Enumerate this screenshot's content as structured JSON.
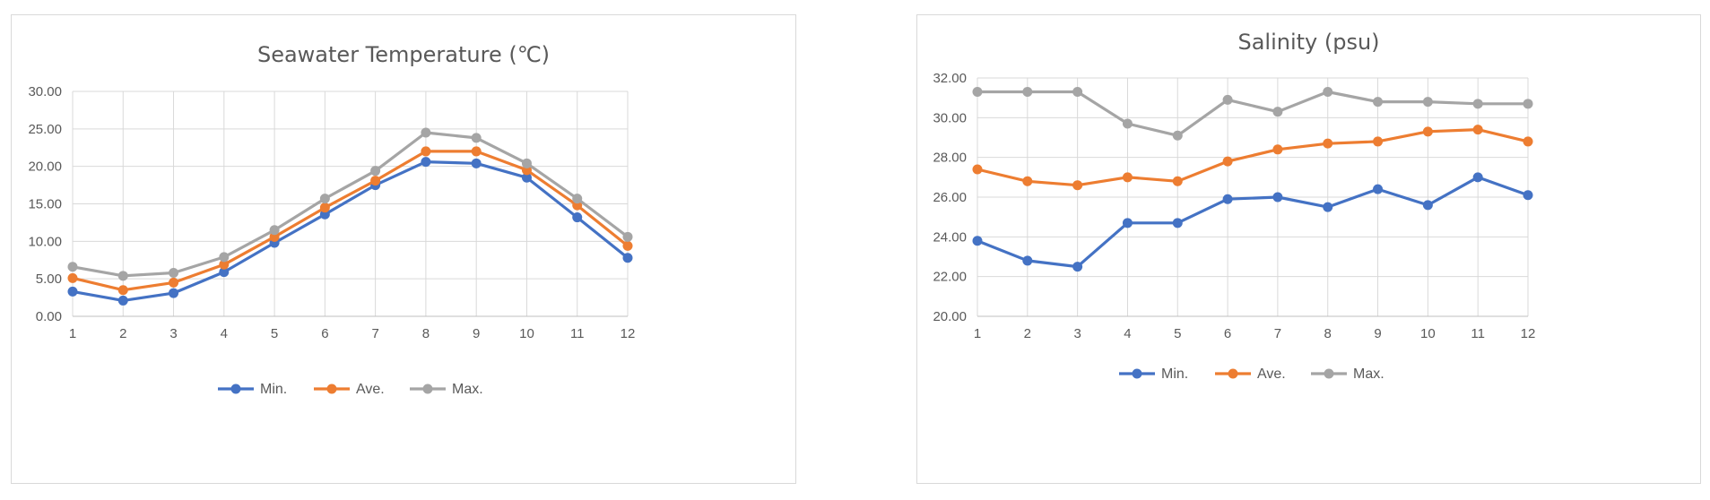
{
  "colors": {
    "min": "#4472C4",
    "ave": "#ED7D31",
    "max": "#A5A5A5",
    "grid": "#D9D9D9",
    "text": "#595959"
  },
  "chart_data": [
    {
      "type": "line",
      "title": "Seawater Temperature (℃)",
      "xlabel": "",
      "ylabel": "",
      "x": [
        "1",
        "2",
        "3",
        "4",
        "5",
        "6",
        "7",
        "8",
        "9",
        "10",
        "11",
        "12"
      ],
      "ylim": [
        0,
        30
      ],
      "yticks": [
        "0.00",
        "5.00",
        "10.00",
        "15.00",
        "20.00",
        "25.00",
        "30.00"
      ],
      "grid": true,
      "legend": "bottom",
      "series": [
        {
          "name": "Min.",
          "color": "#4472C4",
          "values": [
            3.3,
            2.1,
            3.1,
            5.9,
            9.8,
            13.6,
            17.5,
            20.6,
            20.4,
            18.5,
            13.2,
            7.8
          ]
        },
        {
          "name": "Ave.",
          "color": "#ED7D31",
          "values": [
            5.1,
            3.5,
            4.5,
            6.9,
            10.6,
            14.5,
            18.1,
            22.0,
            22.0,
            19.5,
            14.8,
            9.4
          ]
        },
        {
          "name": "Max.",
          "color": "#A5A5A5",
          "values": [
            6.6,
            5.4,
            5.8,
            7.9,
            11.5,
            15.7,
            19.4,
            24.5,
            23.8,
            20.4,
            15.7,
            10.6
          ]
        }
      ]
    },
    {
      "type": "line",
      "title": "Salinity (psu)",
      "xlabel": "",
      "ylabel": "",
      "x": [
        "1",
        "2",
        "3",
        "4",
        "5",
        "6",
        "7",
        "8",
        "9",
        "10",
        "11",
        "12"
      ],
      "ylim": [
        20,
        32
      ],
      "yticks": [
        "20.00",
        "22.00",
        "24.00",
        "26.00",
        "28.00",
        "30.00",
        "32.00"
      ],
      "grid": true,
      "legend": "bottom",
      "series": [
        {
          "name": "Min.",
          "color": "#4472C4",
          "values": [
            23.8,
            22.8,
            22.5,
            24.7,
            24.7,
            25.9,
            26.0,
            25.5,
            26.4,
            25.6,
            27.0,
            26.1
          ]
        },
        {
          "name": "Ave.",
          "color": "#ED7D31",
          "values": [
            27.4,
            26.8,
            26.6,
            27.0,
            26.8,
            27.8,
            28.4,
            28.7,
            28.8,
            29.3,
            29.4,
            28.8
          ]
        },
        {
          "name": "Max.",
          "color": "#A5A5A5",
          "values": [
            31.3,
            31.3,
            31.3,
            29.7,
            29.1,
            30.9,
            30.3,
            31.3,
            30.8,
            30.8,
            30.7,
            30.7
          ]
        }
      ]
    }
  ]
}
